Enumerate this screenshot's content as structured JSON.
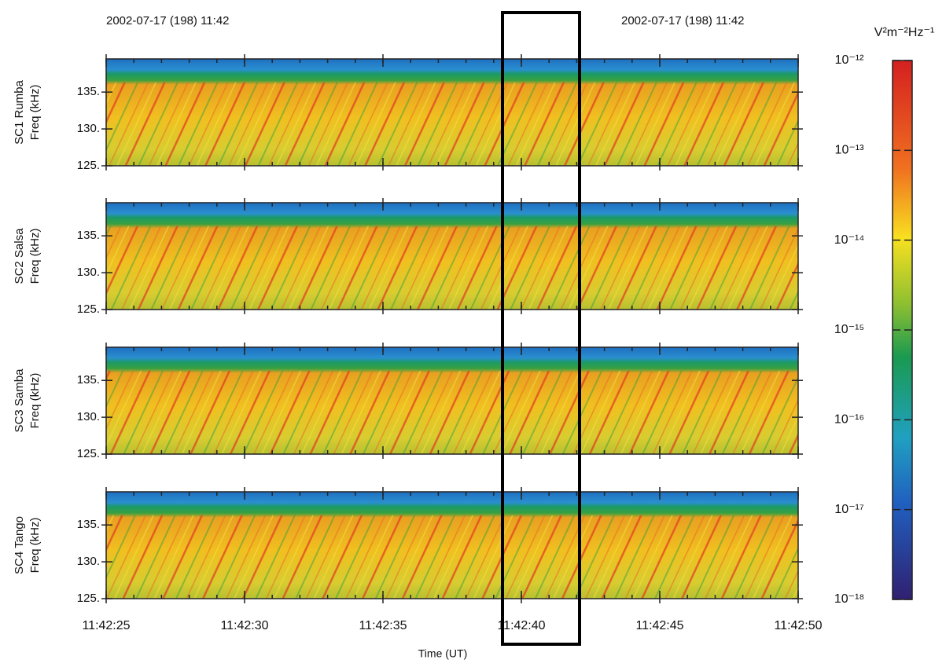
{
  "chart_data": {
    "type": "spectrogram",
    "header_left": "2002-07-17   (198) 11:42",
    "header_right": "2002-07-17  (198) 11:42",
    "xlabel": "Time (UT)",
    "xlim": [
      "11:42:25",
      "11:42:50"
    ],
    "xticks": [
      "11:42:25",
      "11:42:30",
      "11:42:35",
      "11:42:40",
      "11:42:45",
      "11:42:50"
    ],
    "panels": [
      {
        "ylabel": [
          "SC1 Rumba",
          "Freq (kHz)"
        ],
        "ylim": [
          125,
          139.5
        ],
        "yticks": [
          {
            "value": 125,
            "label": "125."
          },
          {
            "value": 130,
            "label": "130."
          },
          {
            "value": 135,
            "label": "135."
          }
        ]
      },
      {
        "ylabel": [
          "SC2 Salsa",
          "Freq (kHz)"
        ],
        "ylim": [
          125,
          139.5
        ],
        "yticks": [
          {
            "value": 125,
            "label": "125."
          },
          {
            "value": 130,
            "label": "130."
          },
          {
            "value": 135,
            "label": "135."
          }
        ]
      },
      {
        "ylabel": [
          "SC3 Samba",
          "Freq (kHz)"
        ],
        "ylim": [
          125,
          139.5
        ],
        "yticks": [
          {
            "value": 125,
            "label": "125."
          },
          {
            "value": 130,
            "label": "130."
          },
          {
            "value": 135,
            "label": "135."
          }
        ]
      },
      {
        "ylabel": [
          "SC4 Tango",
          "Freq (kHz)"
        ],
        "ylim": [
          125,
          139.5
        ],
        "yticks": [
          {
            "value": 125,
            "label": "125."
          },
          {
            "value": 130,
            "label": "130."
          },
          {
            "value": 135,
            "label": "135."
          }
        ]
      }
    ],
    "colorbar": {
      "label": "V²m⁻²Hz⁻¹",
      "log": true,
      "lim": [
        1e-18,
        1e-12
      ],
      "ticks": [
        {
          "value": 1e-12,
          "label": "10⁻¹²"
        },
        {
          "value": 1e-13,
          "label": "10⁻¹³"
        },
        {
          "value": 1e-14,
          "label": "10⁻¹⁴"
        },
        {
          "value": 1e-15,
          "label": "10⁻¹⁵"
        },
        {
          "value": 1e-16,
          "label": "10⁻¹⁶"
        },
        {
          "value": 1e-17,
          "label": "10⁻¹⁷"
        },
        {
          "value": 1e-18,
          "label": "10⁻¹⁸"
        }
      ]
    }
  }
}
